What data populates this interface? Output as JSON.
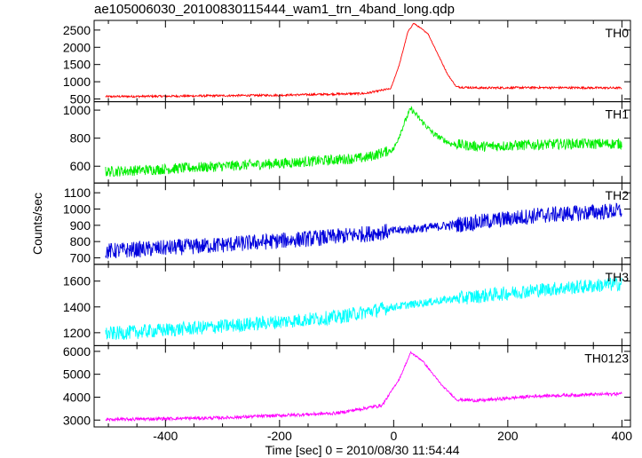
{
  "title": "ae105006030_20100830115444_wam1_trn_4band_long.qdp",
  "chart_data": {
    "type": "line",
    "title": "ae105006030_20100830115444_wam1_trn_4band_long.qdp",
    "xlabel": "Time [sec] 0 = 2010/08/30 11:54:44",
    "ylabel": "Counts/sec",
    "xlim": [
      -525,
      415
    ],
    "x_ticks": [
      -400,
      -200,
      0,
      200,
      400
    ],
    "x_range": [
      -505,
      400
    ],
    "grid": false,
    "panels": [
      {
        "name": "TH0",
        "color": "#ff0000",
        "ylim": [
          420,
          2780
        ],
        "y_ticks": [
          500,
          1000,
          1500,
          2000,
          2500
        ],
        "profile": [
          [
            -505,
            570
          ],
          [
            -400,
            580
          ],
          [
            -200,
            610
          ],
          [
            -50,
            660
          ],
          [
            -5,
            800
          ],
          [
            10,
            1500
          ],
          [
            25,
            2450
          ],
          [
            35,
            2700
          ],
          [
            60,
            2400
          ],
          [
            95,
            1200
          ],
          [
            110,
            850
          ],
          [
            150,
            820
          ],
          [
            250,
            830
          ],
          [
            400,
            820
          ]
        ],
        "noise": 30
      },
      {
        "name": "TH1",
        "color": "#00ee00",
        "ylim": [
          480,
          1060
        ],
        "y_ticks": [
          600,
          800,
          1000
        ],
        "profile": [
          [
            -505,
            560
          ],
          [
            -400,
            580
          ],
          [
            -200,
            620
          ],
          [
            -50,
            660
          ],
          [
            0,
            720
          ],
          [
            20,
            920
          ],
          [
            30,
            1010
          ],
          [
            45,
            940
          ],
          [
            70,
            830
          ],
          [
            100,
            760
          ],
          [
            150,
            740
          ],
          [
            300,
            760
          ],
          [
            400,
            760
          ]
        ],
        "noise": 38
      },
      {
        "name": "TH2",
        "color": "#0000dd",
        "ylim": [
          660,
          1160
        ],
        "y_ticks": [
          700,
          800,
          900,
          1000,
          1100
        ],
        "profile": [
          [
            -505,
            740
          ],
          [
            -300,
            780
          ],
          [
            -100,
            830
          ],
          [
            100,
            900
          ],
          [
            250,
            960
          ],
          [
            400,
            990
          ]
        ],
        "noise": 50
      },
      {
        "name": "TH3",
        "color": "#00ffff",
        "ylim": [
          1100,
          1730
        ],
        "y_ticks": [
          1200,
          1400,
          1600
        ],
        "profile": [
          [
            -505,
            1190
          ],
          [
            -300,
            1250
          ],
          [
            -100,
            1320
          ],
          [
            0,
            1400
          ],
          [
            100,
            1460
          ],
          [
            250,
            1530
          ],
          [
            400,
            1580
          ]
        ],
        "noise": 55
      },
      {
        "name": "TH0123",
        "color": "#ff00ff",
        "ylim": [
          2700,
          6250
        ],
        "y_ticks": [
          3000,
          4000,
          5000,
          6000
        ],
        "profile": [
          [
            -505,
            3020
          ],
          [
            -300,
            3100
          ],
          [
            -100,
            3300
          ],
          [
            -20,
            3650
          ],
          [
            10,
            4800
          ],
          [
            30,
            5950
          ],
          [
            50,
            5600
          ],
          [
            85,
            4500
          ],
          [
            110,
            3900
          ],
          [
            150,
            3850
          ],
          [
            250,
            4050
          ],
          [
            400,
            4150
          ]
        ],
        "noise": 70
      }
    ]
  }
}
